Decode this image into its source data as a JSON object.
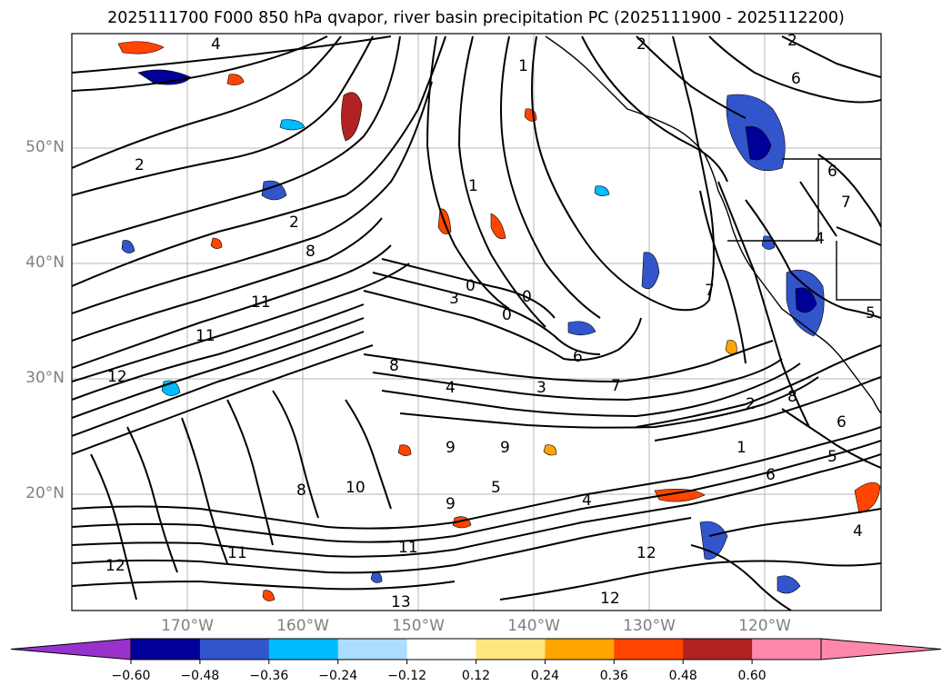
{
  "title": "2025111700 F000 850 hPa qvapor, river basin precipitation PC (2025111900 - 2025112200)",
  "map": {
    "lat_labels": [
      "50°N",
      "40°N",
      "30°N",
      "20°N"
    ],
    "lon_labels": [
      "170°W",
      "160°W",
      "150°W",
      "140°W",
      "130°W",
      "120°W"
    ]
  },
  "contour_labels": [
    "4",
    "2",
    "1",
    "2",
    "2",
    "2",
    "3",
    "0",
    "0",
    "0",
    "1",
    "4",
    "5",
    "6",
    "7",
    "8",
    "8",
    "9",
    "9",
    "10",
    "11",
    "11",
    "11",
    "11",
    "12",
    "12",
    "12",
    "12",
    "13",
    "7",
    "6",
    "3",
    "1",
    "2",
    "4",
    "6",
    "8",
    "5",
    "4",
    "7",
    "6",
    "4",
    "5",
    "8",
    "9",
    "6"
  ],
  "colorbar": {
    "ticks": [
      "−0.60",
      "−0.48",
      "−0.36",
      "−0.24",
      "−0.12",
      "0.12",
      "0.24",
      "0.36",
      "0.48",
      "0.60"
    ],
    "colors": [
      "#9932cc",
      "#000099",
      "#3355cc",
      "#00bbff",
      "#aaddff",
      "#ffffff",
      "#ffe680",
      "#ffa500",
      "#ff4500",
      "#b22222",
      "#ff88aa",
      "#ff88aa"
    ]
  }
}
